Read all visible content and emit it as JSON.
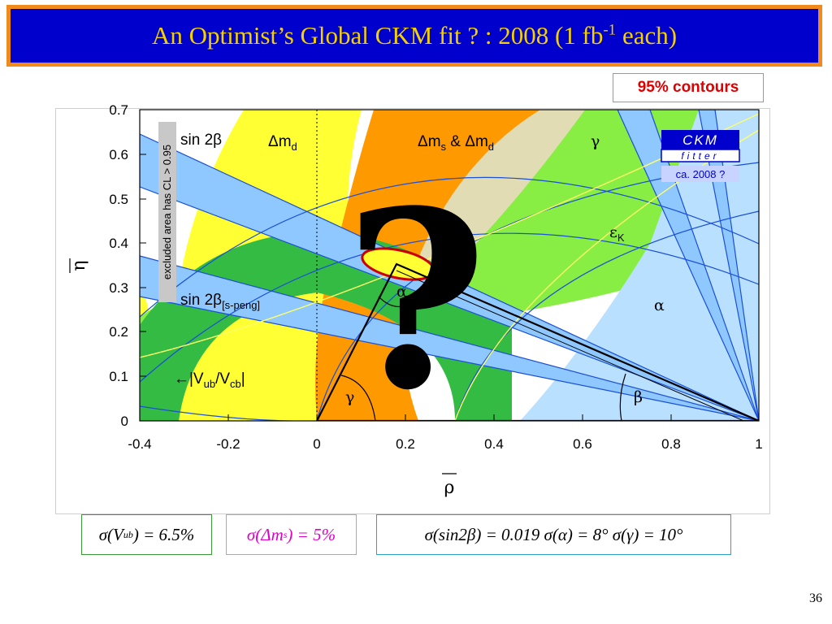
{
  "slide": {
    "title_main": "An Optimist’s Global CKM fit ? : 2008 (1 fb",
    "title_sup": "-1",
    "title_tail": " each)",
    "contours_label": "95% contours",
    "page_number": "36"
  },
  "chart_data": {
    "type": "contour",
    "xlabel": "ρ",
    "ylabel": "η",
    "xlim": [
      -0.4,
      1.0
    ],
    "ylim": [
      0.0,
      0.7
    ],
    "x_ticks": [
      "-0.4",
      "-0.2",
      "0",
      "0.2",
      "0.4",
      "0.6",
      "0.8",
      "1"
    ],
    "y_ticks": [
      "0",
      "0.1",
      "0.2",
      "0.3",
      "0.4",
      "0.5",
      "0.6",
      "0.7"
    ],
    "apex": {
      "rho": 0.185,
      "eta": 0.352
    },
    "constraint_labels": {
      "sin2b": "sin 2β",
      "dmd": "Δm",
      "dmd_sub": "d",
      "dms": "Δm",
      "dms_sub": "s",
      "dms_and": " & Δm",
      "dms_and_sub": "d",
      "gamma": "γ",
      "epsk": "ε",
      "epsk_sub": "K",
      "alpha_right": "α",
      "sin2b_speng": "sin 2β",
      "sin2b_speng_sub": "[s-peng]",
      "vubvcb_arrow": "←",
      "vubvcb_v1": "|V",
      "vubvcb_sub1": "ub",
      "vubvcb_v2": "/V",
      "vubvcb_sub2": "cb",
      "vubvcb_end": "|",
      "alpha_angle": "α",
      "gamma_angle": "γ",
      "beta_angle": "β",
      "excluded": "excluded area has CL > 0.95",
      "question": "?"
    },
    "logo": {
      "line1": "CKM",
      "line2": "fitter",
      "caption": "ca. 2008 ?"
    },
    "colors": {
      "dmd": "#ffff33",
      "dms": "#ff9900",
      "gamma": "#e2dcb5",
      "epsk": "#88ee44",
      "vub": "#33bb44",
      "sin2b": "#8fc8ff",
      "alpha": "#b9e0ff",
      "blue_line": "#1a4fd8",
      "best_fit": "#cc0000"
    }
  },
  "equations": {
    "eq1": "σ(V",
    "eq1_sub": "ub",
    "eq1_end": ") = 6.5%",
    "eq2": "σ(Δm",
    "eq2_sub": "s",
    "eq2_end": ") = 5%",
    "eq3": "σ(sin2β) = 0.019    σ(α) = 8°  σ(γ) = 10°"
  }
}
